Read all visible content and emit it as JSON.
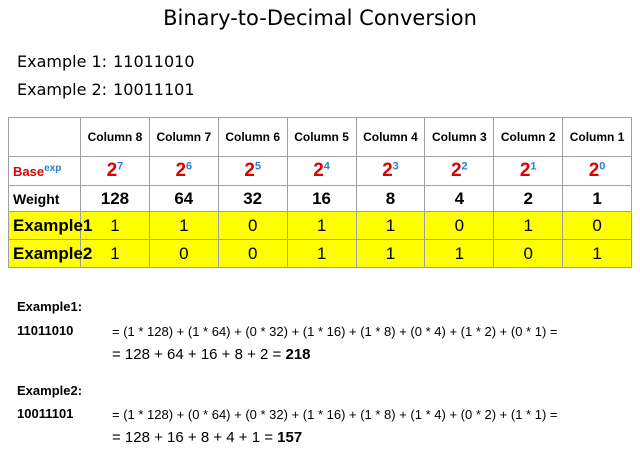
{
  "title": "Binary-to-Decimal Conversion",
  "examples": [
    {
      "label": "Example 1:",
      "value": "11011010"
    },
    {
      "label": "Example 2:",
      "value": "10011101"
    }
  ],
  "table": {
    "columns": [
      "Column 8",
      "Column 7",
      "Column 6",
      "Column 5",
      "Column 4",
      "Column 3",
      "Column 2",
      "Column 1"
    ],
    "base_label": "Base",
    "base_exp_label": "exp",
    "base": "2",
    "exponents": [
      "7",
      "6",
      "5",
      "4",
      "3",
      "2",
      "1",
      "0"
    ],
    "weight_label": "Weight",
    "weights": [
      "128",
      "64",
      "32",
      "16",
      "8",
      "4",
      "2",
      "1"
    ],
    "rows": [
      {
        "label": "Example1",
        "bits": [
          "1",
          "1",
          "0",
          "1",
          "1",
          "0",
          "1",
          "0"
        ]
      },
      {
        "label": "Example2",
        "bits": [
          "1",
          "0",
          "0",
          "1",
          "1",
          "1",
          "0",
          "1"
        ]
      }
    ]
  },
  "work": [
    {
      "label": "Example1:",
      "binary": "11011010",
      "expansion": "= (1 * 128) + (1 * 64) + (0 * 32) + (1 * 16) + (1 * 8) + (0 * 4) + (1 * 2) + (0 * 1) =",
      "sum": "= 128 + 64 + 16 + 8 + 2 =",
      "result": "218"
    },
    {
      "label": "Example2:",
      "binary": "10011101",
      "expansion": "= (1 * 128) + (0 * 64) + (0 * 32) + (1 * 16) + (1 * 8) + (1 * 4) + (0 * 2) + (1 * 1) =",
      "sum": "= 128 + 16 + 8 + 4 + 1 =",
      "result": "157"
    }
  ],
  "colors": {
    "yellow": "#ffff00",
    "red": "#e00000",
    "blue": "#2a7fd4",
    "border": "#9aa0a6"
  }
}
